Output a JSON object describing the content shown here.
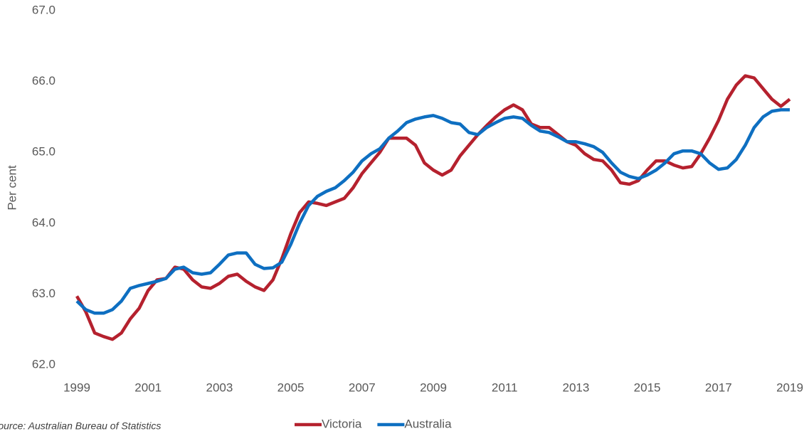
{
  "chart_data": {
    "type": "line",
    "y_label": "Per cent",
    "source": "Source: Australian Bureau of Statistics",
    "x": [
      1999,
      1999.25,
      1999.5,
      1999.75,
      2000,
      2000.25,
      2000.5,
      2000.75,
      2001,
      2001.25,
      2001.5,
      2001.75,
      2002,
      2002.25,
      2002.5,
      2002.75,
      2003,
      2003.25,
      2003.5,
      2003.75,
      2004,
      2004.25,
      2004.5,
      2004.75,
      2005,
      2005.25,
      2005.5,
      2005.75,
      2006,
      2006.25,
      2006.5,
      2006.75,
      2007,
      2007.25,
      2007.5,
      2007.75,
      2008,
      2008.25,
      2008.5,
      2008.75,
      2009,
      2009.25,
      2009.5,
      2009.75,
      2010,
      2010.25,
      2010.5,
      2010.75,
      2011,
      2011.25,
      2011.5,
      2011.75,
      2012,
      2012.25,
      2012.5,
      2012.75,
      2013,
      2013.25,
      2013.5,
      2013.75,
      2014,
      2014.25,
      2014.5,
      2014.75,
      2015,
      2015.25,
      2015.5,
      2015.75,
      2016,
      2016.25,
      2016.5,
      2016.75,
      2017,
      2017.25,
      2017.5,
      2017.75,
      2018,
      2018.25,
      2018.5,
      2018.75,
      2019
    ],
    "series": [
      {
        "name": "Victoria",
        "color": "#b5212e",
        "values": [
          62.97,
          62.75,
          62.45,
          62.4,
          62.36,
          62.45,
          62.65,
          62.8,
          63.05,
          63.2,
          63.22,
          63.38,
          63.35,
          63.2,
          63.1,
          63.08,
          63.15,
          63.25,
          63.28,
          63.18,
          63.1,
          63.05,
          63.2,
          63.5,
          63.85,
          64.15,
          64.3,
          64.28,
          64.25,
          64.3,
          64.35,
          64.5,
          64.7,
          64.85,
          65.0,
          65.2,
          65.2,
          65.2,
          65.1,
          64.85,
          64.75,
          64.68,
          64.75,
          64.95,
          65.1,
          65.25,
          65.38,
          65.5,
          65.6,
          65.67,
          65.6,
          65.4,
          65.35,
          65.35,
          65.25,
          65.15,
          65.1,
          64.98,
          64.9,
          64.88,
          64.75,
          64.57,
          64.55,
          64.6,
          64.75,
          64.88,
          64.88,
          64.82,
          64.78,
          64.8,
          64.98,
          65.2,
          65.45,
          65.75,
          65.95,
          66.08,
          66.05,
          65.9,
          65.75,
          65.65,
          65.75
        ]
      },
      {
        "name": "Australia",
        "color": "#0e6fc1",
        "values": [
          62.9,
          62.78,
          62.73,
          62.73,
          62.78,
          62.9,
          63.08,
          63.12,
          63.15,
          63.18,
          63.22,
          63.35,
          63.38,
          63.3,
          63.28,
          63.3,
          63.42,
          63.55,
          63.58,
          63.58,
          63.42,
          63.36,
          63.37,
          63.45,
          63.7,
          64.0,
          64.25,
          64.38,
          64.45,
          64.5,
          64.6,
          64.72,
          64.88,
          64.98,
          65.05,
          65.2,
          65.3,
          65.42,
          65.47,
          65.5,
          65.52,
          65.48,
          65.42,
          65.4,
          65.28,
          65.25,
          65.35,
          65.42,
          65.48,
          65.5,
          65.48,
          65.38,
          65.3,
          65.28,
          65.22,
          65.15,
          65.15,
          65.12,
          65.08,
          65.0,
          64.85,
          64.72,
          64.66,
          64.63,
          64.68,
          64.75,
          64.85,
          64.98,
          65.02,
          65.02,
          64.98,
          64.85,
          64.76,
          64.78,
          64.9,
          65.1,
          65.35,
          65.5,
          65.58,
          65.6,
          65.6
        ]
      }
    ],
    "xlim": [
      1999,
      2019
    ],
    "xticks": [
      1999,
      2001,
      2003,
      2005,
      2007,
      2009,
      2011,
      2013,
      2015,
      2017,
      2019
    ],
    "ylim": [
      62,
      67
    ],
    "yticks": [
      {
        "value": 62,
        "label": "62.0"
      },
      {
        "value": 63,
        "label": "63.0"
      },
      {
        "value": 64,
        "label": "64.0"
      },
      {
        "value": 65,
        "label": "65.0"
      },
      {
        "value": 66,
        "label": "66.0"
      },
      {
        "value": 67,
        "label": "67.0"
      }
    ],
    "grid": false,
    "legend": "bottom"
  }
}
